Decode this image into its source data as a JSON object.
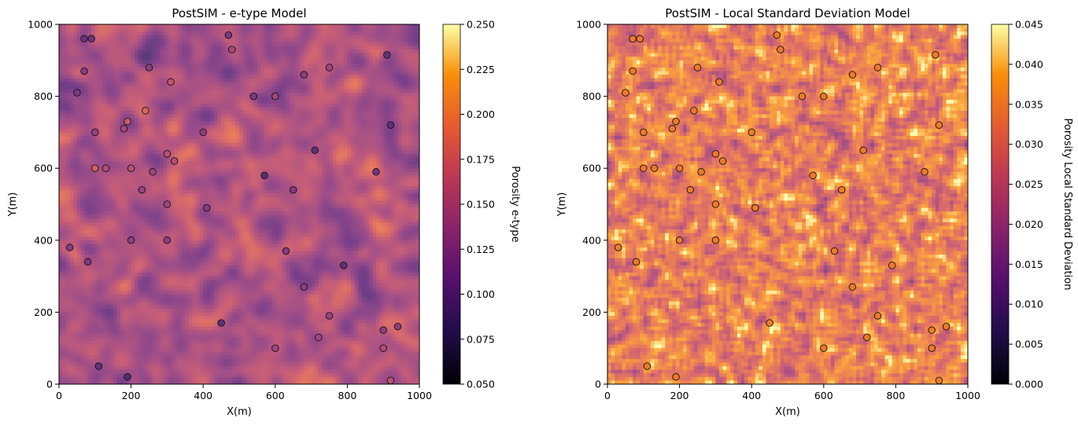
{
  "chart_data": [
    {
      "type": "heatmap",
      "title": "PostSIM - e-type Model",
      "xlabel": "X(m)",
      "ylabel": "Y(m)",
      "xlim": [
        0,
        1000
      ],
      "ylim": [
        0,
        1000
      ],
      "xticks": [
        "0",
        "200",
        "400",
        "600",
        "800",
        "1000"
      ],
      "yticks": [
        "0",
        "200",
        "400",
        "600",
        "800",
        "1000"
      ],
      "grid_cells": 100,
      "field_seed": 7,
      "field_style": "smooth",
      "colormap": "inferno",
      "colorbar": {
        "label": "Porosity e-type",
        "min": 0.05,
        "max": 0.25,
        "ticks": [
          "0.050",
          "0.075",
          "0.100",
          "0.125",
          "0.150",
          "0.175",
          "0.200",
          "0.225",
          "0.250"
        ]
      }
    },
    {
      "type": "heatmap",
      "title": "PostSIM - Local Standard Deviation Model",
      "xlabel": "X(m)",
      "ylabel": "Y(m)",
      "xlim": [
        0,
        1000
      ],
      "ylim": [
        0,
        1000
      ],
      "xticks": [
        "0",
        "200",
        "400",
        "600",
        "800",
        "1000"
      ],
      "yticks": [
        "0",
        "200",
        "400",
        "600",
        "800",
        "1000"
      ],
      "grid_cells": 100,
      "field_seed": 19,
      "field_style": "noisy",
      "colormap": "inferno",
      "colorbar": {
        "label": "Porosity Local Standard Deviation",
        "min": 0.0,
        "max": 0.045,
        "ticks": [
          "0.000",
          "0.005",
          "0.010",
          "0.015",
          "0.020",
          "0.025",
          "0.030",
          "0.035",
          "0.040",
          "0.045"
        ]
      }
    }
  ],
  "well_data": [
    {
      "x": 70,
      "y": 960,
      "porosity": 0.08
    },
    {
      "x": 90,
      "y": 960,
      "porosity": 0.09
    },
    {
      "x": 470,
      "y": 970,
      "porosity": 0.1
    },
    {
      "x": 480,
      "y": 930,
      "porosity": 0.15
    },
    {
      "x": 910,
      "y": 915,
      "porosity": 0.07
    },
    {
      "x": 70,
      "y": 870,
      "porosity": 0.11
    },
    {
      "x": 250,
      "y": 880,
      "porosity": 0.12
    },
    {
      "x": 750,
      "y": 880,
      "porosity": 0.14
    },
    {
      "x": 680,
      "y": 860,
      "porosity": 0.12
    },
    {
      "x": 310,
      "y": 840,
      "porosity": 0.18
    },
    {
      "x": 50,
      "y": 810,
      "porosity": 0.1
    },
    {
      "x": 540,
      "y": 800,
      "porosity": 0.1
    },
    {
      "x": 600,
      "y": 800,
      "porosity": 0.14
    },
    {
      "x": 240,
      "y": 760,
      "porosity": 0.21
    },
    {
      "x": 190,
      "y": 730,
      "porosity": 0.19
    },
    {
      "x": 180,
      "y": 710,
      "porosity": 0.15
    },
    {
      "x": 920,
      "y": 720,
      "porosity": 0.07
    },
    {
      "x": 100,
      "y": 700,
      "porosity": 0.13
    },
    {
      "x": 400,
      "y": 700,
      "porosity": 0.12
    },
    {
      "x": 710,
      "y": 650,
      "porosity": 0.07
    },
    {
      "x": 300,
      "y": 640,
      "porosity": 0.17
    },
    {
      "x": 320,
      "y": 620,
      "porosity": 0.16
    },
    {
      "x": 100,
      "y": 600,
      "porosity": 0.2
    },
    {
      "x": 130,
      "y": 600,
      "porosity": 0.16
    },
    {
      "x": 200,
      "y": 600,
      "porosity": 0.17
    },
    {
      "x": 260,
      "y": 590,
      "porosity": 0.14
    },
    {
      "x": 570,
      "y": 580,
      "porosity": 0.06
    },
    {
      "x": 880,
      "y": 590,
      "porosity": 0.09
    },
    {
      "x": 230,
      "y": 540,
      "porosity": 0.13
    },
    {
      "x": 650,
      "y": 540,
      "porosity": 0.11
    },
    {
      "x": 300,
      "y": 500,
      "porosity": 0.14
    },
    {
      "x": 410,
      "y": 490,
      "porosity": 0.11
    },
    {
      "x": 200,
      "y": 400,
      "porosity": 0.12
    },
    {
      "x": 300,
      "y": 400,
      "porosity": 0.12
    },
    {
      "x": 30,
      "y": 380,
      "porosity": 0.11
    },
    {
      "x": 630,
      "y": 370,
      "porosity": 0.11
    },
    {
      "x": 80,
      "y": 340,
      "porosity": 0.1
    },
    {
      "x": 790,
      "y": 330,
      "porosity": 0.07
    },
    {
      "x": 680,
      "y": 270,
      "porosity": 0.12
    },
    {
      "x": 750,
      "y": 190,
      "porosity": 0.13
    },
    {
      "x": 940,
      "y": 160,
      "porosity": 0.12
    },
    {
      "x": 450,
      "y": 170,
      "porosity": 0.07
    },
    {
      "x": 900,
      "y": 150,
      "porosity": 0.12
    },
    {
      "x": 720,
      "y": 130,
      "porosity": 0.14
    },
    {
      "x": 600,
      "y": 100,
      "porosity": 0.14
    },
    {
      "x": 900,
      "y": 100,
      "porosity": 0.16
    },
    {
      "x": 110,
      "y": 50,
      "porosity": 0.07
    },
    {
      "x": 190,
      "y": 20,
      "porosity": 0.05
    },
    {
      "x": 920,
      "y": 10,
      "porosity": 0.17
    }
  ]
}
